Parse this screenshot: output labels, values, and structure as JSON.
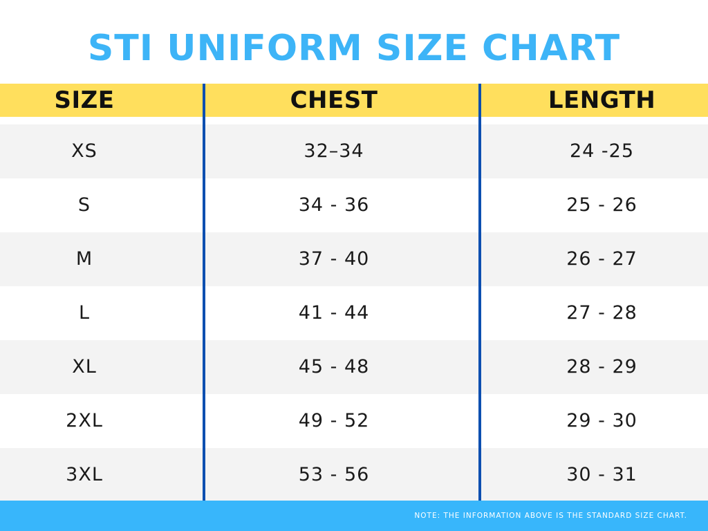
{
  "title": "STI UNIFORM SIZE CHART",
  "headers": {
    "size": "SIZE",
    "chest": "CHEST",
    "length": "LENGTH"
  },
  "rows": [
    {
      "size": "XS",
      "chest": "32–34",
      "length": "24 -25"
    },
    {
      "size": "S",
      "chest": "34 - 36",
      "length": "25 - 26"
    },
    {
      "size": "M",
      "chest": "37 - 40",
      "length": "26 - 27"
    },
    {
      "size": "L",
      "chest": "41 - 44",
      "length": "27 - 28"
    },
    {
      "size": "XL",
      "chest": "45 - 48",
      "length": "28 - 29"
    },
    {
      "size": "2XL",
      "chest": "49 - 52",
      "length": "29 - 30"
    },
    {
      "size": "3XL",
      "chest": "53 - 56",
      "length": "30 - 31"
    }
  ],
  "footer_note": "NOTE: THE INFORMATION ABOVE IS THE STANDARD SIZE CHART.",
  "colors": {
    "title": "#3db4f7",
    "header_band": "#ffdf5d",
    "divider": "#0d4fb0",
    "row_shaded": "#f3f3f3",
    "row_plain": "#ffffff",
    "footer": "#38b6fb"
  }
}
